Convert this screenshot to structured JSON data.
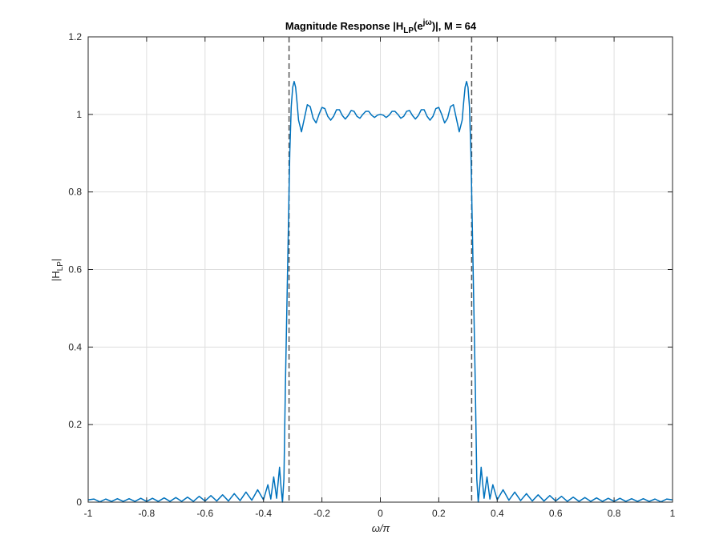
{
  "chart_data": {
    "type": "line",
    "title_parts": {
      "prefix": "Magnitude  Response  |H",
      "sub": "LP",
      "mid": "(e",
      "sup": "jω",
      "suffix": ")|,  M  =  64"
    },
    "xlabel": "ω/π",
    "ylabel_parts": {
      "prefix": "|H",
      "sub": "LP",
      "suffix": "|"
    },
    "xlim": [
      -1,
      1
    ],
    "ylim": [
      0,
      1.2
    ],
    "xticks": [
      -1,
      -0.8,
      -0.6,
      -0.4,
      -0.2,
      0,
      0.2,
      0.4,
      0.6,
      0.8,
      1
    ],
    "xtick_labels": [
      "-1",
      "-0.8",
      "-0.6",
      "-0.4",
      "-0.2",
      "0",
      "0.2",
      "0.4",
      "0.6",
      "0.8",
      "1"
    ],
    "yticks": [
      0,
      0.2,
      0.4,
      0.6,
      0.8,
      1,
      1.2
    ],
    "ytick_labels": [
      "0",
      "0.2",
      "0.4",
      "0.6",
      "0.8",
      "1",
      "1.2"
    ],
    "grid": true,
    "series": [
      {
        "color": "#0072BD",
        "x": [
          -1,
          -0.98,
          -0.96,
          -0.94,
          -0.92,
          -0.9,
          -0.88,
          -0.86,
          -0.84,
          -0.82,
          -0.8,
          -0.78,
          -0.76,
          -0.74,
          -0.72,
          -0.7,
          -0.68,
          -0.66,
          -0.64,
          -0.62,
          -0.6,
          -0.58,
          -0.56,
          -0.54,
          -0.52,
          -0.5,
          -0.48,
          -0.46,
          -0.44,
          -0.42,
          -0.4,
          -0.385,
          -0.375,
          -0.365,
          -0.355,
          -0.345,
          -0.34,
          -0.335,
          -0.33,
          -0.325,
          -0.32,
          -0.315,
          -0.31,
          -0.305,
          -0.3,
          -0.295,
          -0.29,
          -0.285,
          -0.28,
          -0.27,
          -0.26,
          -0.25,
          -0.24,
          -0.23,
          -0.22,
          -0.21,
          -0.2,
          -0.19,
          -0.18,
          -0.17,
          -0.16,
          -0.15,
          -0.14,
          -0.13,
          -0.12,
          -0.11,
          -0.1,
          -0.09,
          -0.08,
          -0.07,
          -0.06,
          -0.05,
          -0.04,
          -0.03,
          -0.02,
          -0.01,
          0,
          0.01,
          0.02,
          0.03,
          0.04,
          0.05,
          0.06,
          0.07,
          0.08,
          0.09,
          0.1,
          0.11,
          0.12,
          0.13,
          0.14,
          0.15,
          0.16,
          0.17,
          0.18,
          0.19,
          0.2,
          0.21,
          0.22,
          0.23,
          0.24,
          0.25,
          0.26,
          0.27,
          0.28,
          0.285,
          0.29,
          0.295,
          0.3,
          0.305,
          0.31,
          0.315,
          0.32,
          0.325,
          0.33,
          0.335,
          0.34,
          0.345,
          0.355,
          0.365,
          0.375,
          0.385,
          0.4,
          0.42,
          0.44,
          0.46,
          0.48,
          0.5,
          0.52,
          0.54,
          0.56,
          0.58,
          0.6,
          0.62,
          0.64,
          0.66,
          0.68,
          0.7,
          0.72,
          0.74,
          0.76,
          0.78,
          0.8,
          0.82,
          0.84,
          0.86,
          0.88,
          0.9,
          0.92,
          0.94,
          0.96,
          0.98,
          1
        ],
        "y": [
          0.006,
          0.008,
          0.001,
          0.008,
          0.002,
          0.009,
          0.002,
          0.009,
          0.002,
          0.01,
          0.002,
          0.01,
          0.002,
          0.011,
          0.002,
          0.012,
          0.002,
          0.013,
          0.002,
          0.015,
          0.003,
          0.017,
          0.003,
          0.019,
          0.003,
          0.022,
          0.004,
          0.026,
          0.005,
          0.032,
          0.006,
          0.045,
          0.008,
          0.065,
          0.01,
          0.09,
          0.04,
          0.0,
          0.06,
          0.3,
          0.5,
          0.7,
          0.9,
          1.02,
          1.07,
          1.085,
          1.07,
          1.03,
          0.985,
          0.955,
          0.99,
          1.025,
          1.02,
          0.99,
          0.978,
          1.0,
          1.018,
          1.015,
          0.995,
          0.985,
          0.995,
          1.012,
          1.012,
          0.997,
          0.988,
          0.997,
          1.01,
          1.008,
          0.995,
          0.99,
          1.0,
          1.008,
          1.008,
          0.998,
          0.992,
          0.998,
          1.0,
          0.998,
          0.992,
          0.998,
          1.008,
          1.008,
          1.0,
          0.99,
          0.995,
          1.008,
          1.01,
          0.997,
          0.988,
          0.997,
          1.012,
          1.012,
          0.995,
          0.985,
          0.995,
          1.015,
          1.018,
          1.0,
          0.978,
          0.99,
          1.02,
          1.025,
          0.99,
          0.955,
          0.985,
          1.03,
          1.07,
          1.085,
          1.07,
          1.02,
          0.9,
          0.7,
          0.5,
          0.3,
          0.06,
          0.0,
          0.04,
          0.09,
          0.01,
          0.065,
          0.008,
          0.045,
          0.006,
          0.032,
          0.005,
          0.026,
          0.004,
          0.022,
          0.003,
          0.019,
          0.003,
          0.017,
          0.003,
          0.015,
          0.002,
          0.013,
          0.002,
          0.012,
          0.002,
          0.011,
          0.002,
          0.01,
          0.002,
          0.01,
          0.002,
          0.009,
          0.002,
          0.009,
          0.002,
          0.008,
          0.001,
          0.008,
          0.006
        ]
      }
    ],
    "reference_lines": [
      {
        "orientation": "vertical",
        "x": -0.3125,
        "style": "dashed",
        "color": "#555555"
      },
      {
        "orientation": "vertical",
        "x": 0.3125,
        "style": "dashed",
        "color": "#555555"
      }
    ]
  }
}
